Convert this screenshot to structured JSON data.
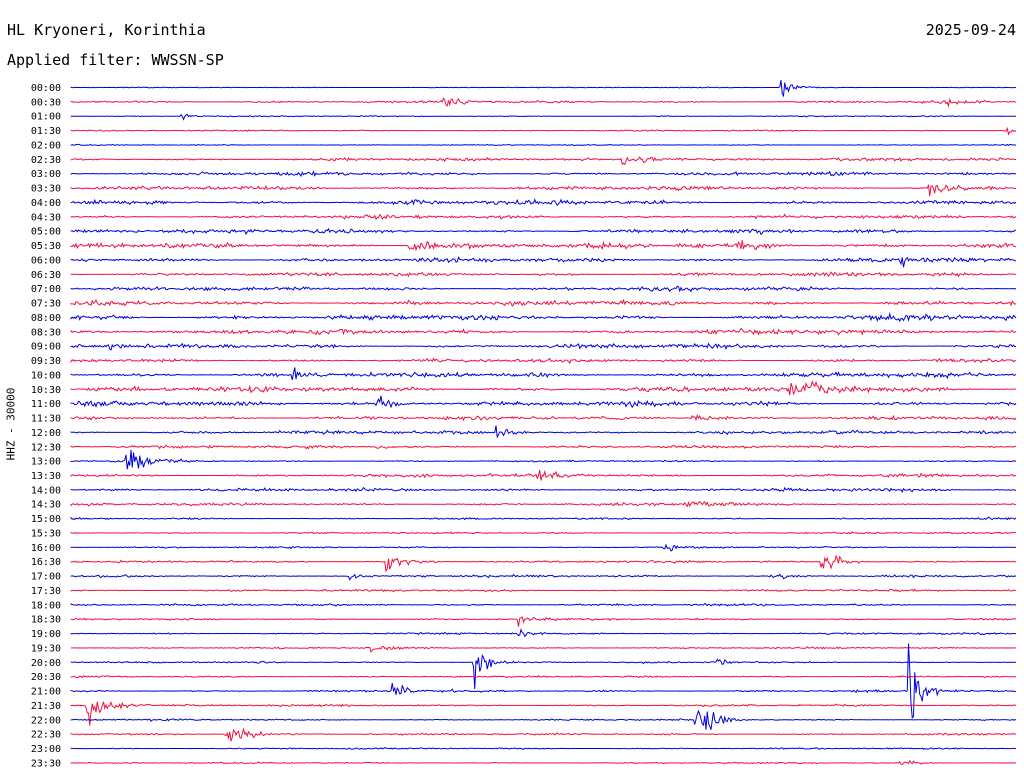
{
  "header": {
    "station": "HL Kryoneri, Korinthia",
    "date": "2025-09-24",
    "filter_label": "Applied filter: WWSSN-SP"
  },
  "axis": {
    "channel_label": "HHZ - 30000"
  },
  "colors": {
    "even_trace": "#0000dd",
    "odd_trace": "#ee1144"
  },
  "chart_data": {
    "type": "helicorder",
    "row_minutes": 30,
    "time_labels": [
      "00:00",
      "00:30",
      "01:00",
      "01:30",
      "02:00",
      "02:30",
      "03:00",
      "03:30",
      "04:00",
      "04:30",
      "05:00",
      "05:30",
      "06:00",
      "06:30",
      "07:00",
      "07:30",
      "08:00",
      "08:30",
      "09:00",
      "09:30",
      "10:00",
      "10:30",
      "11:00",
      "11:30",
      "12:00",
      "12:30",
      "13:00",
      "13:30",
      "14:00",
      "14:30",
      "15:00",
      "15:30",
      "16:00",
      "16:30",
      "17:00",
      "17:30",
      "18:00",
      "18:30",
      "19:00",
      "19:30",
      "20:00",
      "20:30",
      "21:00",
      "21:30",
      "22:00",
      "22:30",
      "23:00",
      "23:30"
    ],
    "noise_level": [
      0.4,
      1.0,
      0.5,
      0.6,
      0.5,
      1.3,
      1.5,
      1.8,
      1.8,
      1.5,
      1.8,
      2.2,
      1.8,
      1.6,
      1.7,
      2.0,
      2.2,
      2.0,
      1.8,
      1.5,
      2.0,
      2.3,
      2.0,
      1.6,
      1.5,
      1.2,
      0.7,
      1.3,
      1.3,
      1.1,
      0.8,
      0.7,
      0.7,
      0.9,
      1.0,
      0.9,
      0.9,
      0.8,
      0.8,
      0.7,
      0.7,
      0.8,
      0.9,
      0.8,
      0.8,
      0.8,
      0.7,
      0.6
    ],
    "events": [
      {
        "row": 0,
        "minute": 22.5,
        "amp": 9,
        "dur": 0.9
      },
      {
        "row": 1,
        "minute": 11.8,
        "amp": 8,
        "dur": 1.0
      },
      {
        "row": 1,
        "minute": 27.8,
        "amp": 5,
        "dur": 0.5
      },
      {
        "row": 2,
        "minute": 3.5,
        "amp": 3,
        "dur": 0.8
      },
      {
        "row": 3,
        "minute": 29.7,
        "amp": 6,
        "dur": 0.3
      },
      {
        "row": 5,
        "minute": 17.5,
        "amp": 6,
        "dur": 2.0
      },
      {
        "row": 7,
        "minute": 27.2,
        "amp": 5,
        "dur": 2.0
      },
      {
        "row": 8,
        "minute": 10.8,
        "amp": 4,
        "dur": 0.5
      },
      {
        "row": 11,
        "minute": 10.7,
        "amp": 10,
        "dur": 1.2
      },
      {
        "row": 11,
        "minute": 21.2,
        "amp": 5,
        "dur": 1.5
      },
      {
        "row": 12,
        "minute": 26.3,
        "amp": 5,
        "dur": 1.0
      },
      {
        "row": 15,
        "minute": 10.5,
        "amp": 4,
        "dur": 1.0
      },
      {
        "row": 18,
        "minute": 1.2,
        "amp": 4,
        "dur": 0.5
      },
      {
        "row": 20,
        "minute": 7.0,
        "amp": 8,
        "dur": 0.6
      },
      {
        "row": 21,
        "minute": 22.8,
        "amp": 6,
        "dur": 3.0
      },
      {
        "row": 22,
        "minute": 9.7,
        "amp": 7,
        "dur": 1.2
      },
      {
        "row": 23,
        "minute": 19.7,
        "amp": 7,
        "dur": 0.8
      },
      {
        "row": 24,
        "minute": 13.5,
        "amp": 7,
        "dur": 0.8
      },
      {
        "row": 25,
        "minute": 9.7,
        "amp": 4,
        "dur": 0.7
      },
      {
        "row": 26,
        "minute": 1.7,
        "amp": 14,
        "dur": 1.5
      },
      {
        "row": 27,
        "minute": 14.8,
        "amp": 4,
        "dur": 2.0
      },
      {
        "row": 29,
        "minute": 19.5,
        "amp": 4,
        "dur": 1.5
      },
      {
        "row": 32,
        "minute": 18.8,
        "amp": 4,
        "dur": 1.0
      },
      {
        "row": 33,
        "minute": 10.0,
        "amp": 12,
        "dur": 1.0
      },
      {
        "row": 33,
        "minute": 23.8,
        "amp": 12,
        "dur": 1.0
      },
      {
        "row": 34,
        "minute": 8.8,
        "amp": 4,
        "dur": 0.5
      },
      {
        "row": 34,
        "minute": 22.2,
        "amp": 4,
        "dur": 1.0
      },
      {
        "row": 37,
        "minute": 14.2,
        "amp": 8,
        "dur": 0.8
      },
      {
        "row": 38,
        "minute": 14.2,
        "amp": 5,
        "dur": 0.5
      },
      {
        "row": 39,
        "minute": 9.5,
        "amp": 4,
        "dur": 1.0
      },
      {
        "row": 40,
        "minute": 12.8,
        "amp": 30,
        "dur": 0.7
      },
      {
        "row": 40,
        "minute": 20.5,
        "amp": 5,
        "dur": 0.6
      },
      {
        "row": 42,
        "minute": 10.2,
        "amp": 11,
        "dur": 0.8
      },
      {
        "row": 42,
        "minute": 26.6,
        "amp": 60,
        "dur": 0.6
      },
      {
        "row": 43,
        "minute": 0.5,
        "amp": 18,
        "dur": 1.2
      },
      {
        "row": 44,
        "minute": 19.8,
        "amp": 24,
        "dur": 1.0
      },
      {
        "row": 45,
        "minute": 4.9,
        "amp": 9,
        "dur": 1.4
      },
      {
        "row": 47,
        "minute": 26.3,
        "amp": 4,
        "dur": 0.8
      }
    ]
  }
}
